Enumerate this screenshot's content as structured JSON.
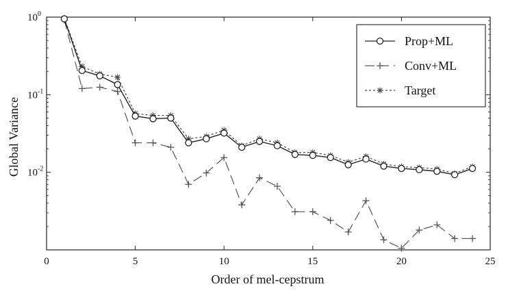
{
  "chart_data": {
    "type": "line",
    "xlabel": "Order of mel-cepstrum",
    "ylabel": "Global Variance",
    "yscale": "log",
    "xlim": [
      0,
      25
    ],
    "ylim": [
      0.001,
      1
    ],
    "xticks": [
      0,
      5,
      10,
      15,
      20,
      25
    ],
    "xtick_labels": [
      "0",
      "5",
      "10",
      "15",
      "20",
      "25"
    ],
    "yticks": [
      1,
      0.1,
      0.01
    ],
    "ytick_labels": [
      {
        "base": "10",
        "exp": "0"
      },
      {
        "base": "10",
        "exp": "-1"
      },
      {
        "base": "10",
        "exp": "-2"
      }
    ],
    "grid": false,
    "legend_position": "top-right",
    "x": [
      1,
      2,
      3,
      4,
      5,
      6,
      7,
      8,
      9,
      10,
      11,
      12,
      13,
      14,
      15,
      16,
      17,
      18,
      19,
      20,
      21,
      22,
      23,
      24
    ],
    "series": [
      {
        "name": "Prop+ML",
        "style": "solid",
        "marker": "circle",
        "color": "#222222",
        "values": [
          0.95,
          0.205,
          0.175,
          0.135,
          0.053,
          0.049,
          0.05,
          0.024,
          0.027,
          0.032,
          0.021,
          0.025,
          0.022,
          0.017,
          0.0165,
          0.0155,
          0.0125,
          0.0148,
          0.012,
          0.0112,
          0.0108,
          0.0103,
          0.0093,
          0.0112
        ]
      },
      {
        "name": "Conv+ML",
        "style": "dashed",
        "marker": "plus",
        "color": "#555555",
        "values": [
          0.92,
          0.12,
          0.125,
          0.11,
          0.024,
          0.024,
          0.021,
          0.007,
          0.0098,
          0.0155,
          0.0038,
          0.0085,
          0.0066,
          0.0031,
          0.0031,
          0.0024,
          0.0017,
          0.0043,
          0.00135,
          0.00105,
          0.0018,
          0.0021,
          0.0014,
          0.0014
        ]
      },
      {
        "name": "Target",
        "style": "dotted",
        "marker": "star",
        "color": "#444444",
        "values": [
          0.97,
          0.23,
          0.185,
          0.168,
          0.057,
          0.054,
          0.054,
          0.027,
          0.029,
          0.035,
          0.022,
          0.027,
          0.024,
          0.018,
          0.018,
          0.0165,
          0.0135,
          0.016,
          0.0128,
          0.0118,
          0.0115,
          0.011,
          0.0097,
          0.0118
        ]
      }
    ]
  }
}
